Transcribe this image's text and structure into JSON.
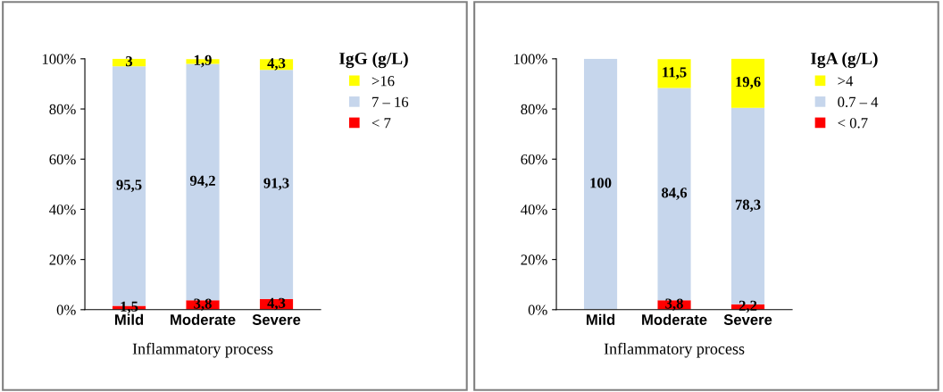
{
  "chart_data": [
    {
      "type": "bar",
      "stacked": true,
      "legend_title": "IgG (g/L)",
      "xlabel": "Inflammatory process",
      "categories": [
        "Mild",
        "Moderate",
        "Severe"
      ],
      "ylim": [
        0,
        100
      ],
      "yticks": [
        {
          "value": 0,
          "label": "0%"
        },
        {
          "value": 20,
          "label": "20%"
        },
        {
          "value": 40,
          "label": "40%"
        },
        {
          "value": 60,
          "label": "60%"
        },
        {
          "value": 80,
          "label": "80%"
        },
        {
          "value": 100,
          "label": "100%"
        }
      ],
      "grid": false,
      "legend": "top right",
      "series": [
        {
          "name": "< 7",
          "color": "#ff0000",
          "values": [
            1.5,
            3.8,
            4.3
          ],
          "value_labels": [
            "1,5",
            "3,8",
            "4,3"
          ]
        },
        {
          "name": "7 – 16",
          "color": "#c6d6ec",
          "values": [
            95.5,
            94.2,
            91.3
          ],
          "value_labels": [
            "95,5",
            "94,2",
            "91,3"
          ]
        },
        {
          "name": ">16",
          "color": "#ffff00",
          "values": [
            3,
            1.9,
            4.3
          ],
          "value_labels": [
            "3",
            "1,9",
            "4,3"
          ]
        }
      ]
    },
    {
      "type": "bar",
      "stacked": true,
      "legend_title": "IgA (g/L)",
      "xlabel": "Inflammatory process",
      "categories": [
        "Mild",
        "Moderate",
        "Severe"
      ],
      "ylim": [
        0,
        100
      ],
      "yticks": [
        {
          "value": 0,
          "label": "0%"
        },
        {
          "value": 20,
          "label": "20%"
        },
        {
          "value": 40,
          "label": "40%"
        },
        {
          "value": 60,
          "label": "60%"
        },
        {
          "value": 80,
          "label": "80%"
        },
        {
          "value": 100,
          "label": "100%"
        }
      ],
      "grid": false,
      "legend": "top right",
      "series": [
        {
          "name": "< 0.7",
          "color": "#ff0000",
          "values": [
            null,
            3.8,
            2.2
          ],
          "value_labels": [
            null,
            "3,8",
            "2,2"
          ]
        },
        {
          "name": "0.7 – 4",
          "color": "#c6d6ec",
          "values": [
            100,
            84.6,
            78.3
          ],
          "value_labels": [
            "100",
            "84,6",
            "78,3"
          ]
        },
        {
          "name": ">4",
          "color": "#ffff00",
          "values": [
            null,
            11.5,
            19.6
          ],
          "value_labels": [
            null,
            "11,5",
            "19,6"
          ]
        }
      ]
    }
  ]
}
